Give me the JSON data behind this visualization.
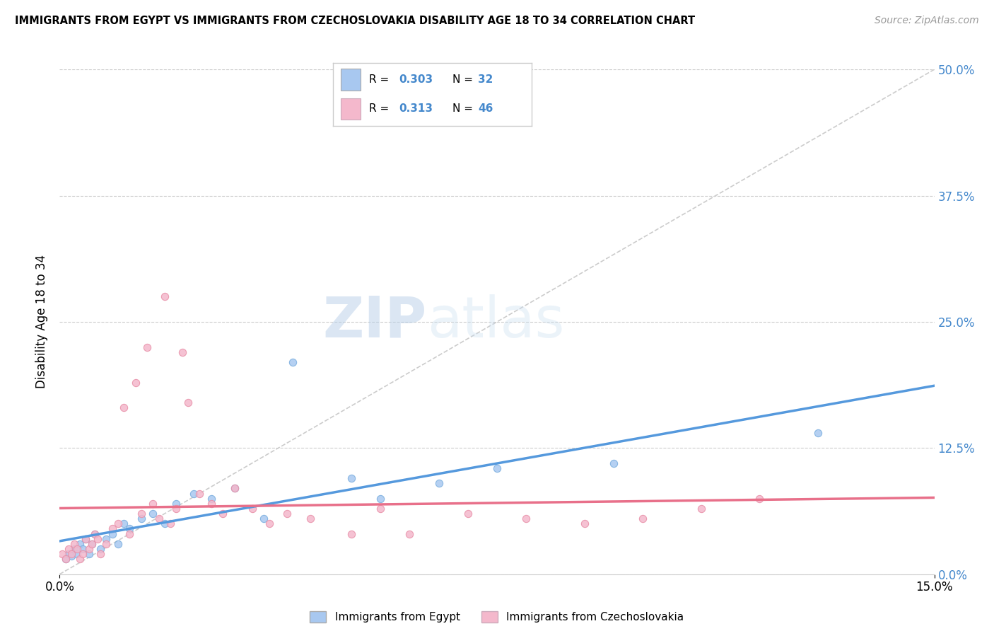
{
  "title": "IMMIGRANTS FROM EGYPT VS IMMIGRANTS FROM CZECHOSLOVAKIA DISABILITY AGE 18 TO 34 CORRELATION CHART",
  "source": "Source: ZipAtlas.com",
  "ylabel_label": "Disability Age 18 to 34",
  "xlim": [
    0.0,
    15.0
  ],
  "ylim": [
    0.0,
    50.0
  ],
  "yticks": [
    0.0,
    12.5,
    25.0,
    37.5,
    50.0
  ],
  "xticks": [
    0.0,
    15.0
  ],
  "color_egypt": "#a8c8f0",
  "color_egypt_edge": "#7aaede",
  "color_czech": "#f4b8cc",
  "color_czech_edge": "#e890a8",
  "color_egypt_line": "#5599dd",
  "color_czech_line": "#e8708a",
  "color_diag": "#cccccc",
  "color_ytick": "#4488cc",
  "watermark_zip": "ZIP",
  "watermark_atlas": "atlas",
  "legend_label_egypt": "Immigrants from Egypt",
  "legend_label_czech": "Immigrants from Czechoslovakia",
  "egypt_x": [
    0.1,
    0.15,
    0.2,
    0.25,
    0.3,
    0.35,
    0.4,
    0.45,
    0.5,
    0.55,
    0.6,
    0.7,
    0.8,
    0.9,
    1.0,
    1.1,
    1.2,
    1.4,
    1.6,
    1.8,
    2.0,
    2.3,
    2.6,
    3.0,
    3.5,
    4.0,
    5.0,
    5.5,
    6.5,
    7.5,
    9.5,
    13.0
  ],
  "egypt_y": [
    1.5,
    2.0,
    1.8,
    2.5,
    2.0,
    3.0,
    2.5,
    3.5,
    2.0,
    3.0,
    4.0,
    2.5,
    3.5,
    4.0,
    3.0,
    5.0,
    4.5,
    5.5,
    6.0,
    5.0,
    7.0,
    8.0,
    7.5,
    8.5,
    5.5,
    21.0,
    9.5,
    7.5,
    9.0,
    10.5,
    11.0,
    14.0
  ],
  "czech_x": [
    0.05,
    0.1,
    0.15,
    0.2,
    0.25,
    0.3,
    0.35,
    0.4,
    0.45,
    0.5,
    0.55,
    0.6,
    0.65,
    0.7,
    0.8,
    0.9,
    1.0,
    1.1,
    1.2,
    1.3,
    1.4,
    1.5,
    1.6,
    1.7,
    1.8,
    1.9,
    2.0,
    2.1,
    2.2,
    2.4,
    2.6,
    2.8,
    3.0,
    3.3,
    3.6,
    3.9,
    4.3,
    5.0,
    5.5,
    6.0,
    7.0,
    8.0,
    9.0,
    10.0,
    11.0,
    12.0
  ],
  "czech_y": [
    2.0,
    1.5,
    2.5,
    2.0,
    3.0,
    2.5,
    1.5,
    2.0,
    3.5,
    2.5,
    3.0,
    4.0,
    3.5,
    2.0,
    3.0,
    4.5,
    5.0,
    16.5,
    4.0,
    19.0,
    6.0,
    22.5,
    7.0,
    5.5,
    27.5,
    5.0,
    6.5,
    22.0,
    17.0,
    8.0,
    7.0,
    6.0,
    8.5,
    6.5,
    5.0,
    6.0,
    5.5,
    4.0,
    6.5,
    4.0,
    6.0,
    5.5,
    5.0,
    5.5,
    6.5,
    7.5
  ]
}
